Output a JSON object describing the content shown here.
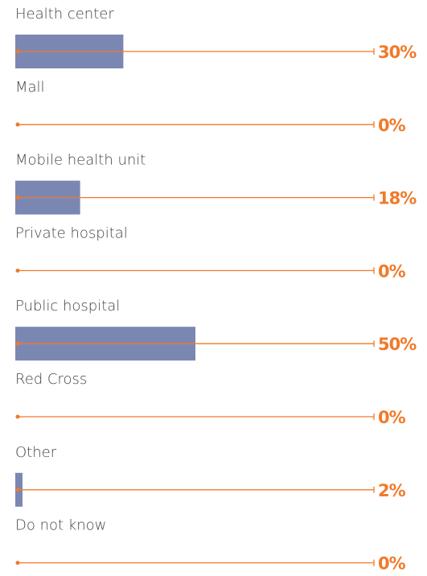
{
  "chart_data": {
    "type": "hbar",
    "categories": [
      "Health center",
      "Mall",
      "Mobile health unit",
      "Private hospital",
      "Public hospital",
      "Red Cross",
      "Other",
      "Do not know"
    ],
    "values": [
      30,
      0,
      18,
      0,
      50,
      0,
      2,
      0
    ],
    "value_labels": [
      "30%",
      "0%",
      "18%",
      "0%",
      "50%",
      "0%",
      "2%",
      "0%"
    ],
    "color": "#7b87b3",
    "line_color": "#f07a2a",
    "xlim": [
      0,
      100
    ]
  }
}
